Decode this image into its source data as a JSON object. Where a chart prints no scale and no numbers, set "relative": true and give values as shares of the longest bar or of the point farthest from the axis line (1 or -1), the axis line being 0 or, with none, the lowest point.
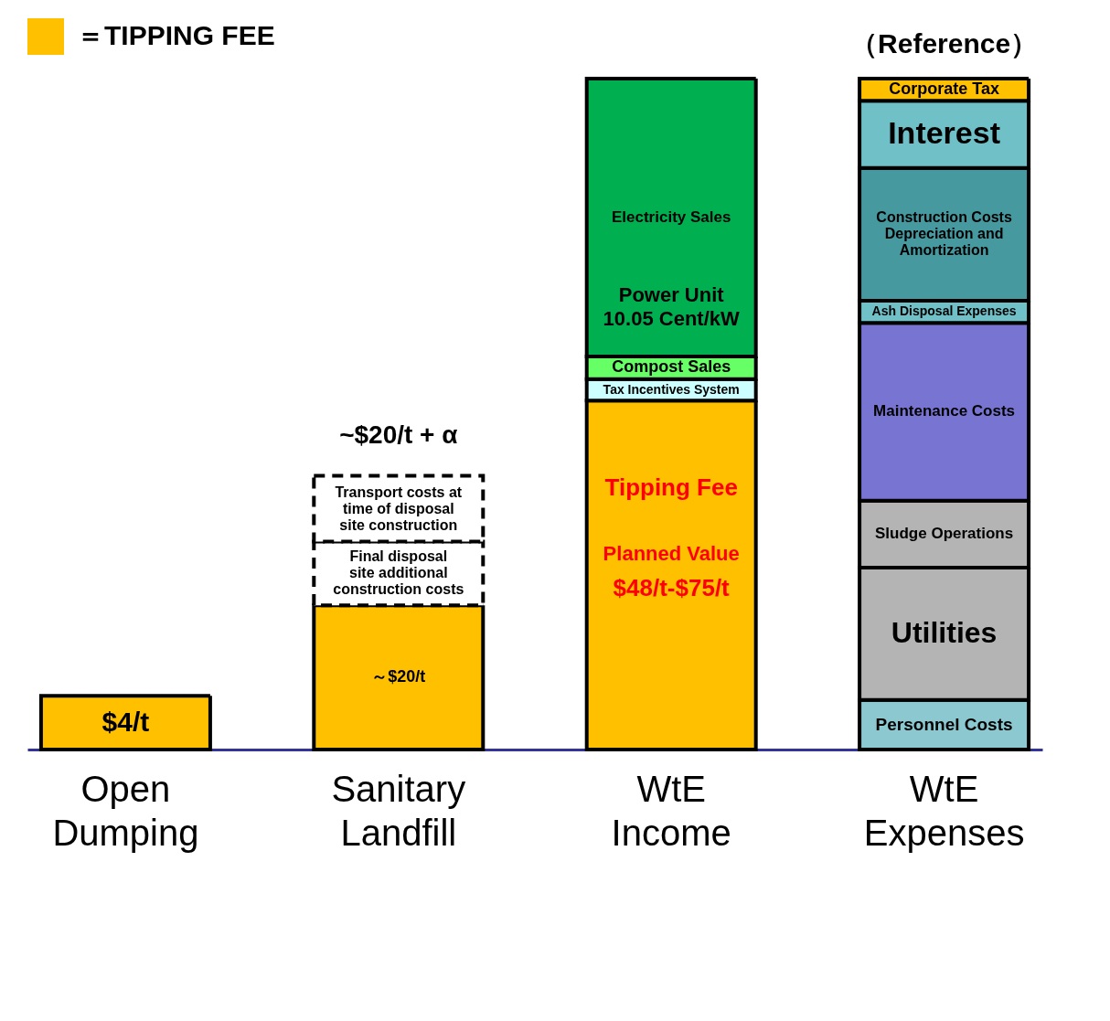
{
  "chart_data": {
    "type": "bar",
    "stacked": true,
    "relative": true,
    "legend": "top left",
    "categories": [
      "Open Dumping",
      "Sanitary Landfill",
      "WtE Income",
      "WtE Expenses"
    ],
    "series": [
      {
        "name": "＝TIPPING FEE",
        "color": "#ffc000",
        "values": [
          0.08,
          0.215,
          0.52,
          null
        ]
      },
      {
        "name": "Final disposal site additional construction costs",
        "color": "#ffffff",
        "line_style": "dashed",
        "values": [
          null,
          0.095,
          null,
          null
        ]
      },
      {
        "name": "Transport costs at time of disposal site construction",
        "color": "#ffffff",
        "line_style": "dashed",
        "values": [
          null,
          0.098,
          null,
          null
        ]
      },
      {
        "name": "Tax Incentives System",
        "color": "#ccffff",
        "values": [
          null,
          null,
          0.032,
          null
        ]
      },
      {
        "name": "Compost Sales",
        "color": "#66ff66",
        "values": [
          null,
          null,
          0.034,
          null
        ]
      },
      {
        "name": "Electricity Sales",
        "color": "#00b050",
        "values": [
          null,
          null,
          0.414,
          null
        ]
      },
      {
        "name": "Personnel Costs",
        "color": "#8cc8d0",
        "values": [
          null,
          null,
          null,
          0.074
        ]
      },
      {
        "name": "Utilities",
        "color": "#b4b4b4",
        "values": [
          null,
          null,
          null,
          0.197
        ]
      },
      {
        "name": "Sludge Operations",
        "color": "#b4b4b4",
        "values": [
          null,
          null,
          null,
          0.1
        ]
      },
      {
        "name": "Maintenance Costs",
        "color": "#7774d2",
        "values": [
          null,
          null,
          null,
          0.265
        ]
      },
      {
        "name": "Ash Disposal Expenses",
        "color": "#70c0c8",
        "values": [
          null,
          null,
          null,
          0.033
        ]
      },
      {
        "name": "Construction Costs Depreciation and Amortization",
        "color": "#4799a0",
        "values": [
          null,
          null,
          null,
          0.198
        ]
      },
      {
        "name": "Interest",
        "color": "#70c0c8",
        "values": [
          null,
          null,
          null,
          0.1
        ]
      },
      {
        "name": "Corporate Tax",
        "color": "#ffc000",
        "values": [
          null,
          null,
          null,
          0.033
        ]
      }
    ],
    "annotations": [
      "$4/t",
      "～$20/t",
      "~$20/t + α",
      "Tipping Fee",
      "Planned Value",
      "$48/t-$75/t",
      "Power Unit 10.05 Cent/kW",
      "（Reference）"
    ]
  }
}
